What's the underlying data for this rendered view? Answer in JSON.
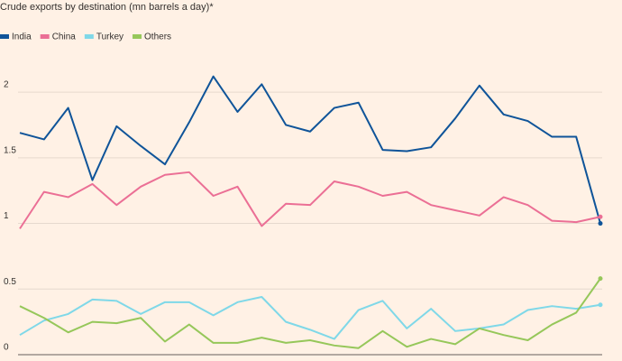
{
  "chart_data": {
    "type": "line",
    "title": "Crude exports by destination (mn barrels a day)*",
    "categories": [
      null,
      null,
      null,
      null,
      null,
      null,
      null,
      null,
      null,
      null,
      null,
      null,
      null,
      null,
      null,
      null,
      null,
      null,
      null,
      null,
      null,
      null,
      null,
      null,
      null
    ],
    "series": [
      {
        "name": "India",
        "color": "#0f5499",
        "values": [
          1.69,
          1.64,
          1.88,
          1.33,
          1.74,
          1.59,
          1.45,
          1.77,
          2.12,
          1.85,
          2.06,
          1.75,
          1.7,
          1.88,
          1.92,
          1.56,
          1.55,
          1.58,
          1.8,
          2.05,
          1.83,
          1.78,
          1.66,
          1.66,
          1.0
        ]
      },
      {
        "name": "China",
        "color": "#eb6f95",
        "values": [
          0.96,
          1.24,
          1.2,
          1.3,
          1.14,
          1.28,
          1.37,
          1.39,
          1.21,
          1.28,
          0.98,
          1.15,
          1.14,
          1.32,
          1.28,
          1.21,
          1.24,
          1.14,
          1.1,
          1.06,
          1.2,
          1.14,
          1.02,
          1.01,
          1.05
        ]
      },
      {
        "name": "Turkey",
        "color": "#7fd8e8",
        "values": [
          0.15,
          0.26,
          0.31,
          0.42,
          0.41,
          0.31,
          0.4,
          0.4,
          0.3,
          0.4,
          0.44,
          0.25,
          0.19,
          0.12,
          0.34,
          0.41,
          0.2,
          0.35,
          0.18,
          0.2,
          0.23,
          0.34,
          0.37,
          0.35,
          0.38
        ]
      },
      {
        "name": "Others",
        "color": "#96c75a",
        "values": [
          0.37,
          0.28,
          0.17,
          0.25,
          0.24,
          0.28,
          0.1,
          0.23,
          0.09,
          0.09,
          0.13,
          0.09,
          0.11,
          0.07,
          0.05,
          0.18,
          0.06,
          0.12,
          0.08,
          0.2,
          0.15,
          0.11,
          0.23,
          0.32,
          0.58
        ]
      }
    ],
    "ylim": [
      0,
      2.2
    ],
    "yticks": [
      0,
      0.5,
      1,
      1.5,
      2
    ],
    "grid": true,
    "legend": "top-left"
  }
}
